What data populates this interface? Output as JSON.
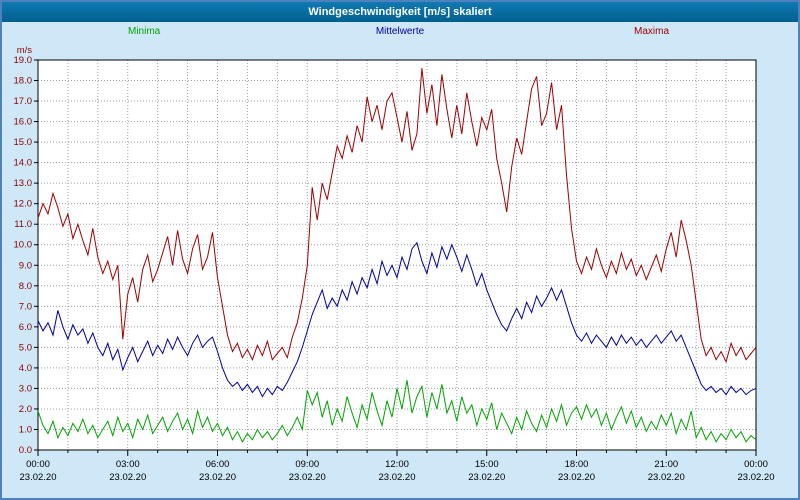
{
  "header": {
    "title": "Windgeschwindigkeit [m/s] skaliert"
  },
  "colors": {
    "frame_border": "#4f81bd",
    "background": "#cfe8f7",
    "titlebar": "#01608f",
    "axis_label": "#8b0000"
  },
  "chart_data": {
    "type": "line",
    "title": "Windgeschwindigkeit [m/s] skaliert",
    "ylabel": "m/s",
    "ylim": [
      0,
      19
    ],
    "y_tick_step": 1.0,
    "x_hours": 24,
    "grid": "dotted",
    "legend_position": "top",
    "x_tick_labels": [
      "00:00",
      "03:00",
      "06:00",
      "09:00",
      "12:00",
      "15:00",
      "18:00",
      "21:00",
      "00:00"
    ],
    "x_date_labels": [
      "23.02.20",
      "23.02.20",
      "23.02.20",
      "23.02.20",
      "23.02.20",
      "23.02.20",
      "23.02.20",
      "23.02.20",
      "23.02.20"
    ],
    "series": [
      {
        "name": "Minima",
        "color": "#00a400",
        "values": [
          1.9,
          1.2,
          0.8,
          1.4,
          0.6,
          1.1,
          0.7,
          1.3,
          0.9,
          1.5,
          0.8,
          1.2,
          0.6,
          1.0,
          1.4,
          0.7,
          1.6,
          0.9,
          1.3,
          0.6,
          1.5,
          1.0,
          1.7,
          0.8,
          1.2,
          1.6,
          0.9,
          1.4,
          1.8,
          1.0,
          1.5,
          0.8,
          1.9,
          1.1,
          1.6,
          0.9,
          1.3,
          0.7,
          1.1,
          0.5,
          0.9,
          0.4,
          0.8,
          0.5,
          1.0,
          0.6,
          0.9,
          0.5,
          0.8,
          1.2,
          0.7,
          1.1,
          1.6,
          1.0,
          2.9,
          2.2,
          2.8,
          1.6,
          2.4,
          1.2,
          2.0,
          1.4,
          2.6,
          1.8,
          1.1,
          2.2,
          1.5,
          2.8,
          1.9,
          1.2,
          2.4,
          1.6,
          3.0,
          2.0,
          3.4,
          1.8,
          2.6,
          3.1,
          1.6,
          2.8,
          2.0,
          3.2,
          1.8,
          2.4,
          1.4,
          2.6,
          1.8,
          2.2,
          1.2,
          2.0,
          1.5,
          2.3,
          1.0,
          1.8,
          1.3,
          0.8,
          1.6,
          1.0,
          1.9,
          1.3,
          0.9,
          1.7,
          1.1,
          2.0,
          1.4,
          2.2,
          1.2,
          1.8,
          2.1,
          1.5,
          2.2,
          1.6,
          2.0,
          1.2,
          1.8,
          1.0,
          1.6,
          2.1,
          1.3,
          1.9,
          1.1,
          1.6,
          0.9,
          1.4,
          1.0,
          1.7,
          1.2,
          1.8,
          0.8,
          1.5,
          1.0,
          1.9,
          0.6,
          1.1,
          0.5,
          0.9,
          0.4,
          0.8,
          0.5,
          1.0,
          0.6,
          0.9,
          0.4,
          0.7,
          0.5
        ]
      },
      {
        "name": "Mittelwerte",
        "color": "#0000a0",
        "values": [
          6.3,
          5.8,
          6.2,
          5.6,
          6.8,
          6.0,
          5.4,
          6.1,
          5.6,
          5.9,
          5.2,
          5.7,
          5.0,
          4.6,
          5.2,
          4.4,
          4.9,
          3.9,
          4.5,
          5.0,
          4.3,
          4.8,
          5.3,
          4.6,
          5.1,
          4.7,
          5.4,
          4.9,
          5.5,
          5.0,
          4.6,
          5.2,
          5.6,
          5.0,
          5.3,
          5.5,
          4.8,
          4.0,
          3.4,
          3.1,
          3.3,
          2.9,
          3.2,
          2.8,
          3.1,
          2.6,
          3.0,
          2.7,
          3.1,
          2.9,
          3.3,
          3.8,
          4.3,
          5.0,
          5.8,
          6.6,
          7.2,
          7.8,
          6.9,
          7.4,
          7.0,
          7.8,
          7.3,
          8.2,
          7.6,
          8.4,
          7.9,
          8.8,
          8.1,
          9.2,
          8.5,
          9.0,
          8.4,
          9.4,
          8.8,
          9.8,
          10.1,
          9.2,
          8.6,
          9.6,
          8.9,
          9.9,
          9.3,
          10.0,
          9.4,
          8.7,
          9.5,
          8.8,
          8.0,
          8.6,
          7.8,
          7.2,
          6.6,
          6.1,
          5.8,
          6.4,
          6.9,
          6.4,
          7.2,
          6.7,
          7.5,
          7.0,
          7.4,
          7.9,
          7.3,
          7.8,
          7.0,
          6.2,
          5.6,
          5.3,
          5.7,
          5.2,
          5.6,
          5.3,
          5.0,
          5.5,
          5.1,
          5.6,
          5.2,
          5.5,
          5.1,
          5.4,
          5.0,
          5.3,
          5.6,
          5.2,
          5.5,
          5.8,
          5.3,
          5.6,
          5.0,
          4.4,
          3.8,
          3.2,
          2.9,
          3.1,
          2.8,
          3.0,
          2.7,
          3.1,
          2.8,
          3.0,
          2.7,
          2.9,
          3.0
        ]
      },
      {
        "name": "Maxima",
        "color": "#a00000",
        "values": [
          11.3,
          12.0,
          11.5,
          12.5,
          11.8,
          10.9,
          11.5,
          10.3,
          11.0,
          10.2,
          9.5,
          10.8,
          9.4,
          8.6,
          9.2,
          8.3,
          9.0,
          5.4,
          7.6,
          8.4,
          7.2,
          8.8,
          9.5,
          8.2,
          8.8,
          9.6,
          10.4,
          9.0,
          10.7,
          9.3,
          8.6,
          9.8,
          10.5,
          8.8,
          9.4,
          10.6,
          8.4,
          7.0,
          5.6,
          4.8,
          5.2,
          4.5,
          4.9,
          4.4,
          5.1,
          4.6,
          5.3,
          4.4,
          4.7,
          5.0,
          4.5,
          5.5,
          6.2,
          7.4,
          9.0,
          12.8,
          11.2,
          13.0,
          12.2,
          13.5,
          14.8,
          14.2,
          15.3,
          14.5,
          15.8,
          15.0,
          17.2,
          16.0,
          16.8,
          15.6,
          17.0,
          17.4,
          16.2,
          15.0,
          16.5,
          14.6,
          15.4,
          18.6,
          16.4,
          17.8,
          15.8,
          18.3,
          16.6,
          15.2,
          16.8,
          15.4,
          17.4,
          16.0,
          14.8,
          16.2,
          15.6,
          16.6,
          14.2,
          13.0,
          11.6,
          13.8,
          15.2,
          14.4,
          16.0,
          17.6,
          18.2,
          15.8,
          16.4,
          17.9,
          15.6,
          16.8,
          13.4,
          10.8,
          9.2,
          8.6,
          9.4,
          8.8,
          9.8,
          9.0,
          8.4,
          9.2,
          8.6,
          9.6,
          8.8,
          9.3,
          8.5,
          9.0,
          8.3,
          8.9,
          9.5,
          8.7,
          9.8,
          10.6,
          9.4,
          11.2,
          10.2,
          9.0,
          7.2,
          5.4,
          4.6,
          5.0,
          4.4,
          4.8,
          4.3,
          5.2,
          4.6,
          5.0,
          4.4,
          4.7,
          5.0
        ]
      }
    ]
  }
}
